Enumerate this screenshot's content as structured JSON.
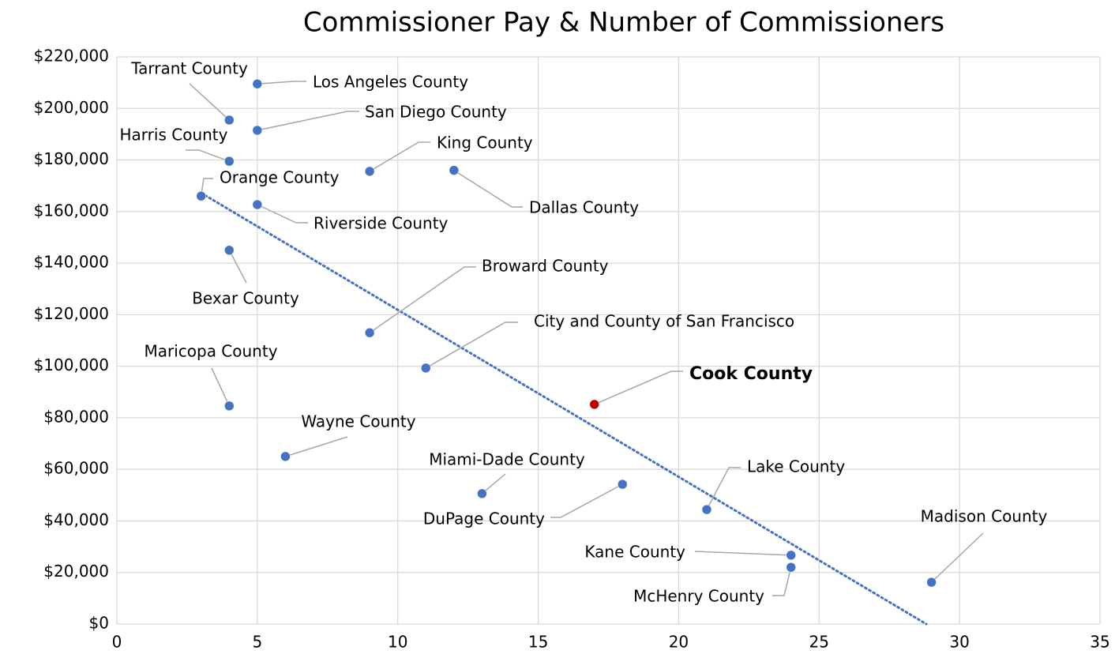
{
  "chart_data": {
    "type": "scatter",
    "title": "Commissioner Pay & Number of Commissioners",
    "x": [
      4,
      5,
      5,
      4,
      9,
      12,
      3,
      5,
      4,
      9,
      11,
      4,
      17,
      6,
      13,
      18,
      21,
      24,
      24,
      29
    ],
    "values": [
      195500,
      209500,
      191500,
      179500,
      175600,
      176000,
      166000,
      162700,
      145000,
      113000,
      99300,
      84600,
      85200,
      65000,
      50600,
      54200,
      44400,
      26700,
      22000,
      16200
    ],
    "labels": [
      "Tarrant County",
      "Los Angeles County",
      "San Diego County",
      "Harris County",
      "King County",
      "Dallas County",
      "Orange County",
      "Riverside County",
      "Bexar County",
      "Broward County",
      "City and County of San Francisco",
      "Maricopa County",
      "Cook County",
      "Wayne County",
      "Miami-Dade County",
      "DuPage County",
      "Lake County",
      "Kane County",
      "McHenry County",
      "Madison County"
    ],
    "colors": [
      "#4472c4",
      "#4472c4",
      "#4472c4",
      "#4472c4",
      "#4472c4",
      "#4472c4",
      "#4472c4",
      "#4472c4",
      "#4472c4",
      "#4472c4",
      "#4472c4",
      "#4472c4",
      "#c00000",
      "#4472c4",
      "#4472c4",
      "#4472c4",
      "#4472c4",
      "#4472c4",
      "#4472c4",
      "#4472c4"
    ],
    "highlight_index": 12,
    "trendline": "linear",
    "trendline_color": "#4472c4",
    "xlim": [
      0,
      35
    ],
    "xticks": [
      0,
      5,
      10,
      15,
      20,
      25,
      30,
      35
    ],
    "ylim": [
      0,
      220000
    ],
    "yticks": [
      {
        "value": 0,
        "label": "$0"
      },
      {
        "value": 20000,
        "label": "$20,000"
      },
      {
        "value": 40000,
        "label": "$40,000"
      },
      {
        "value": 60000,
        "label": "$60,000"
      },
      {
        "value": 80000,
        "label": "$80,000"
      },
      {
        "value": 100000,
        "label": "$100,000"
      },
      {
        "value": 120000,
        "label": "$120,000"
      },
      {
        "value": 140000,
        "label": "$140,000"
      },
      {
        "value": 160000,
        "label": "$160,000"
      },
      {
        "value": 180000,
        "label": "$180,000"
      },
      {
        "value": 200000,
        "label": "$200,000"
      },
      {
        "value": 220000,
        "label": "$220,000"
      }
    ],
    "grid": true
  }
}
